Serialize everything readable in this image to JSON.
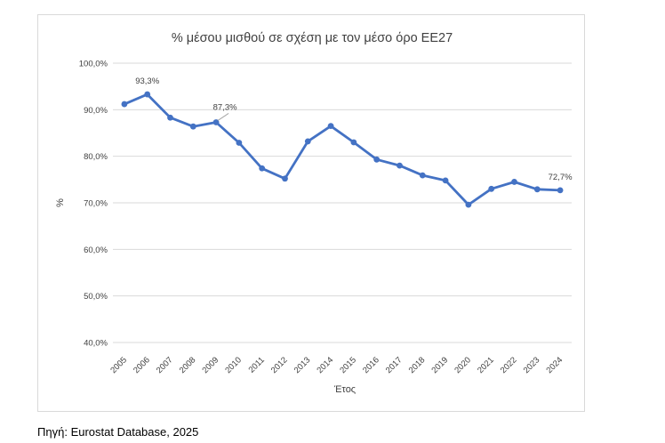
{
  "chart_data": {
    "type": "line",
    "title": "% μέσου μισθού σε σχέση με τον μέσο όρο ΕΕ27",
    "xlabel": "Έτος",
    "ylabel": "%",
    "ylim": [
      40,
      100
    ],
    "yticks": [
      "40,0%",
      "50,0%",
      "60,0%",
      "70,0%",
      "80,0%",
      "90,0%",
      "100,0%"
    ],
    "categories": [
      "2005",
      "2006",
      "2007",
      "2008",
      "2009",
      "2010",
      "2011",
      "2012",
      "2013",
      "2014",
      "2015",
      "2016",
      "2017",
      "2018",
      "2019",
      "2020",
      "2021",
      "2022",
      "2023",
      "2024"
    ],
    "series": [
      {
        "name": "%",
        "values": [
          91.2,
          93.3,
          88.3,
          86.4,
          87.3,
          82.9,
          77.4,
          75.2,
          83.2,
          86.5,
          83.0,
          79.3,
          78.0,
          75.9,
          74.8,
          69.6,
          73.0,
          74.5,
          72.9,
          72.7
        ]
      }
    ],
    "annotations": [
      {
        "index": 1,
        "label": "93,3%"
      },
      {
        "index": 4,
        "label": "87,3%"
      },
      {
        "index": 19,
        "label": "72,7%"
      }
    ],
    "line_color": "#4472c4",
    "grid": true
  },
  "source_note": "Πηγή: Eurostat Database, 2025"
}
